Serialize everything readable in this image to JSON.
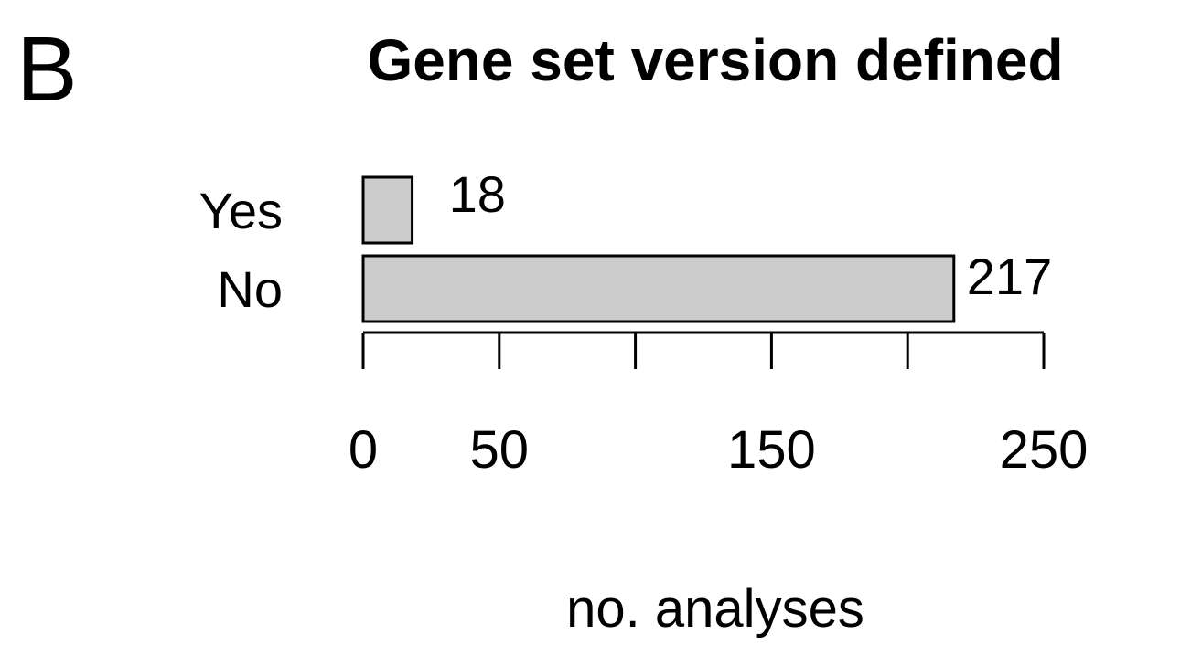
{
  "panel_label": "B",
  "chart_data": {
    "type": "bar",
    "orientation": "horizontal",
    "title": "Gene set version defined",
    "categories": [
      "Yes",
      "No"
    ],
    "values": [
      18,
      217
    ],
    "data_labels": [
      "18",
      "217"
    ],
    "xlabel": "no. analyses",
    "ylabel": "",
    "xlim": [
      0,
      250
    ],
    "x_ticks": [
      0,
      50,
      100,
      150,
      200,
      250
    ],
    "x_tick_labels": [
      "0",
      "50",
      "",
      "150",
      "",
      "250"
    ],
    "grid": false,
    "legend": "none",
    "colors": {
      "bar_fill": "#cccccc",
      "bar_stroke": "#000000"
    }
  }
}
